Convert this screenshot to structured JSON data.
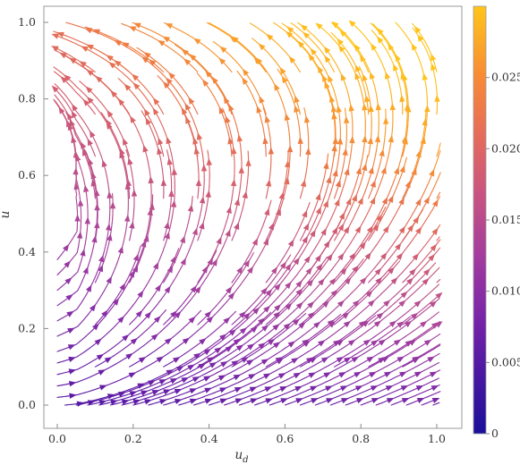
{
  "chart_data": {
    "type": "streamplot",
    "title": "",
    "xlabel": "u",
    "xlabel_subscript": "d",
    "ylabel": "u",
    "xlim": [
      -0.05,
      1.03
    ],
    "ylim": [
      -0.06,
      1.03
    ],
    "x_ticks": [
      "0.0",
      "0.2",
      "0.4",
      "0.6",
      "0.8",
      "1.0"
    ],
    "y_ticks": [
      "0.0",
      "0.2",
      "0.4",
      "0.6",
      "0.8",
      "1.0"
    ],
    "grid": false,
    "legend": "colorbar-right",
    "colorbar": {
      "range": [
        0,
        0.03
      ],
      "ticks": [
        "0",
        "0.005",
        "0.010",
        "0.015",
        "0.020",
        "0.025"
      ],
      "colors": [
        "#1a0f9a",
        "#5c1aa6",
        "#8a2fa8",
        "#b04a97",
        "#d35e72",
        "#ee7a45",
        "#fba12a",
        "#ffc41a"
      ]
    },
    "field": {
      "description_values": "arrows point up-left above diagonal, right/up-right below; magnitude grows toward upper right",
      "streamline_seeds_x": [
        0.02,
        0.05,
        0.08,
        0.11,
        0.14,
        0.17,
        0.2,
        0.24,
        0.28,
        0.32,
        0.36,
        0.4,
        0.44,
        0.48,
        0.52,
        0.56,
        0.6,
        0.64,
        0.68,
        0.72,
        0.76,
        0.8,
        0.84,
        0.88,
        0.92,
        0.96,
        0.99
      ],
      "streamline_seeds_y": [
        0.02,
        0.05,
        0.08,
        0.11,
        0.14,
        0.18,
        0.22,
        0.26,
        0.3,
        0.34,
        0.38
      ]
    }
  }
}
